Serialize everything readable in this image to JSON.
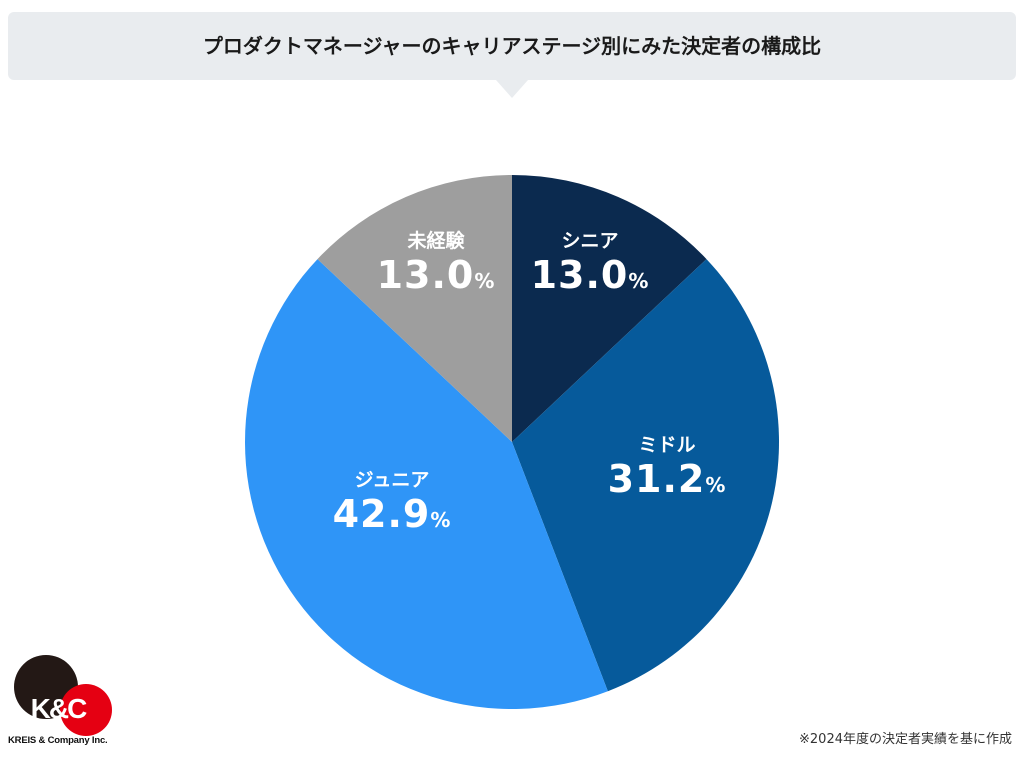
{
  "title": "プロダクトマネージャーのキャリアステージ別にみた決定者の構成比",
  "chart_data": {
    "type": "pie",
    "title": "プロダクトマネージャーのキャリアステージ別にみた決定者の構成比",
    "start": "top",
    "direction": "clockwise",
    "slices": [
      {
        "label": "シニア",
        "value": 13.0,
        "display": "13.0",
        "unit": "%",
        "color": "#0b2a4f"
      },
      {
        "label": "ミドル",
        "value": 31.2,
        "display": "31.2",
        "unit": "%",
        "color": "#065a9b"
      },
      {
        "label": "ジュニア",
        "value": 42.9,
        "display": "42.9",
        "unit": "%",
        "color": "#2f95f7"
      },
      {
        "label": "未経験",
        "value": 13.0,
        "display": "13.0",
        "unit": "%",
        "color": "#9e9e9e"
      }
    ]
  },
  "footnote": "※2024年度の決定者実績を基に作成",
  "logo": {
    "mark": "K&C",
    "company": "KREIS & Company Inc."
  }
}
